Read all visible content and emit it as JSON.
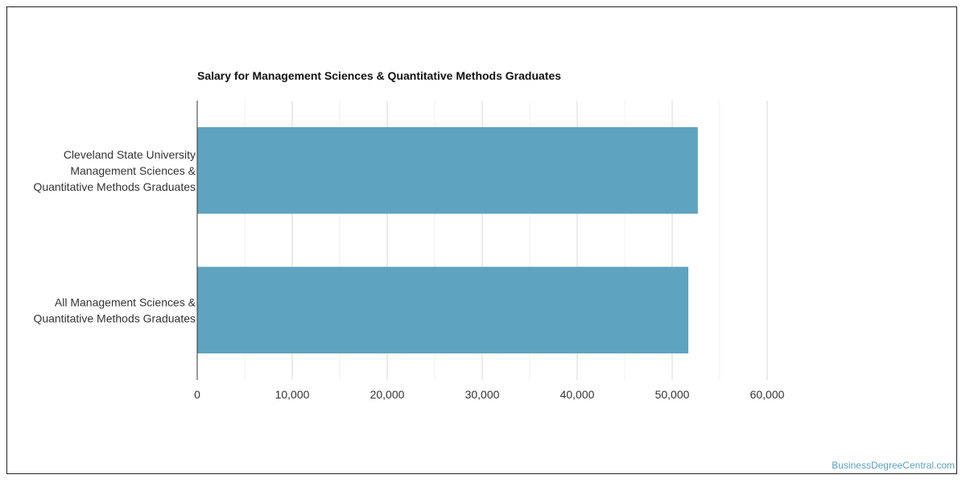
{
  "chart_data": {
    "type": "bar",
    "orientation": "horizontal",
    "title": "Salary for Management Sciences & Quantitative Methods Graduates",
    "categories": [
      [
        "Cleveland State University",
        "Management Sciences &",
        "Quantitative Methods Graduates"
      ],
      [
        "All Management Sciences &",
        "Quantitative Methods Graduates"
      ]
    ],
    "values": [
      52700,
      51700
    ],
    "xlim": [
      0,
      60000
    ],
    "xticks": [
      "0",
      "10,000",
      "20,000",
      "30,000",
      "40,000",
      "50,000",
      "60,000"
    ],
    "xtick_values": [
      0,
      10000,
      20000,
      30000,
      40000,
      50000,
      60000
    ],
    "minor_gridlines": true,
    "bar_color": "#5ea3bf",
    "grid_color": "#d9d9d9"
  },
  "watermark": "BusinessDegreeCentral.com"
}
